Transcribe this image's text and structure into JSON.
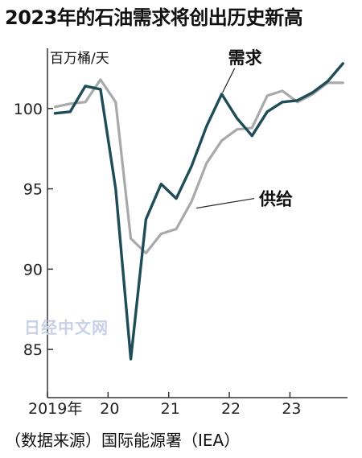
{
  "title": "2023年的石油需求将创出历史新高",
  "source": "（数据来源）国际能源署（IEA）",
  "watermark": "日经中文网",
  "colors": {
    "demand": "#1f4d57",
    "supply": "#a7a9ab",
    "axis": "#333333"
  },
  "chart_data": {
    "type": "line",
    "unit_label": "百万桶/天",
    "ylim": [
      82,
      104
    ],
    "yticks": [
      85,
      90,
      95,
      100
    ],
    "xlim": [
      2019.0,
      2023.95
    ],
    "xticks": [
      {
        "x": 2019.0,
        "label": "2019年"
      },
      {
        "x": 2020.0,
        "label": "20"
      },
      {
        "x": 2021.0,
        "label": "21"
      },
      {
        "x": 2022.0,
        "label": "22"
      },
      {
        "x": 2023.0,
        "label": "23"
      }
    ],
    "grid": false,
    "series": [
      {
        "name": "需求",
        "color": "#1f4d57",
        "points": [
          [
            2019.125,
            99.7
          ],
          [
            2019.375,
            99.8
          ],
          [
            2019.625,
            101.4
          ],
          [
            2019.875,
            101.2
          ],
          [
            2020.125,
            95.0
          ],
          [
            2020.375,
            84.4
          ],
          [
            2020.625,
            93.1
          ],
          [
            2020.875,
            95.3
          ],
          [
            2021.125,
            94.4
          ],
          [
            2021.375,
            96.4
          ],
          [
            2021.625,
            98.9
          ],
          [
            2021.875,
            100.9
          ],
          [
            2022.125,
            99.4
          ],
          [
            2022.375,
            98.3
          ],
          [
            2022.625,
            99.8
          ],
          [
            2022.875,
            100.4
          ],
          [
            2023.125,
            100.5
          ],
          [
            2023.375,
            101.0
          ],
          [
            2023.625,
            101.7
          ],
          [
            2023.875,
            102.8
          ]
        ]
      },
      {
        "name": "供给",
        "color": "#a7a9ab",
        "points": [
          [
            2019.125,
            100.1
          ],
          [
            2019.375,
            100.3
          ],
          [
            2019.625,
            100.4
          ],
          [
            2019.875,
            101.8
          ],
          [
            2020.125,
            100.4
          ],
          [
            2020.375,
            91.9
          ],
          [
            2020.625,
            91.0
          ],
          [
            2020.875,
            92.2
          ],
          [
            2021.125,
            92.5
          ],
          [
            2021.375,
            94.2
          ],
          [
            2021.625,
            96.6
          ],
          [
            2021.875,
            98.0
          ],
          [
            2022.125,
            98.7
          ],
          [
            2022.375,
            98.8
          ],
          [
            2022.625,
            100.8
          ],
          [
            2022.875,
            101.1
          ],
          [
            2023.125,
            100.4
          ],
          [
            2023.375,
            100.9
          ],
          [
            2023.625,
            101.6
          ],
          [
            2023.875,
            101.6
          ]
        ]
      }
    ]
  }
}
